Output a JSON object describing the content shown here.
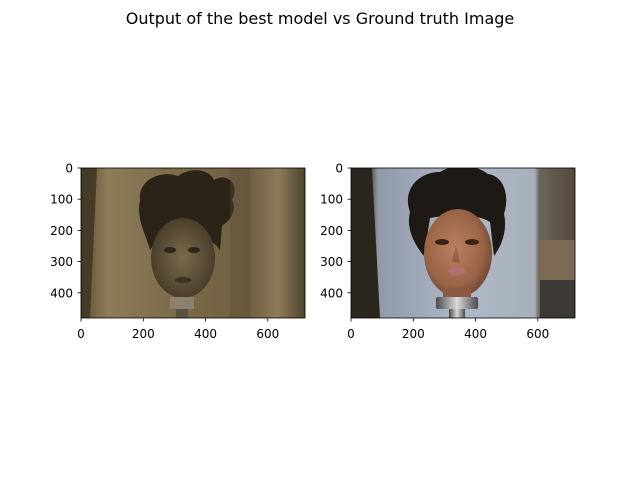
{
  "figure": {
    "title": "Output of the best model vs Ground truth Image"
  },
  "panels": [
    {
      "name": "best-model-output",
      "xticks": [
        "0",
        "200",
        "400",
        "600"
      ],
      "yticks": [
        "0",
        "100",
        "200",
        "300",
        "400"
      ]
    },
    {
      "name": "ground-truth",
      "xticks": [
        "0",
        "200",
        "400",
        "600"
      ],
      "yticks": [
        "0",
        "100",
        "200",
        "300",
        "400"
      ]
    }
  ]
}
